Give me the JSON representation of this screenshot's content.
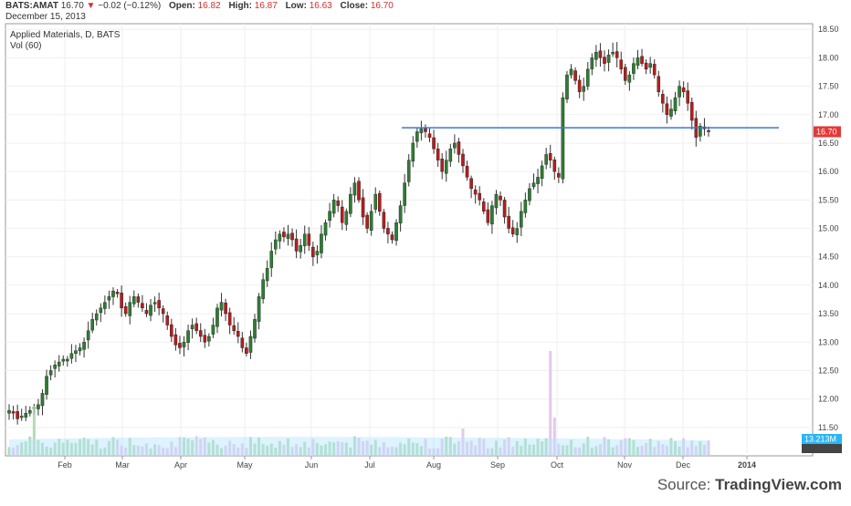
{
  "header": {
    "symbol": "BATS:AMAT",
    "price": "16.70",
    "change": "−0.02 (−0.12%)",
    "open_label": "Open:",
    "open": "16.82",
    "high_label": "High:",
    "high": "16.87",
    "low_label": "Low:",
    "low": "16.63",
    "close_label": "Close:",
    "close": "16.70",
    "date": "December 15, 2013"
  },
  "legend": {
    "title": "Applied Materials, D, BATS",
    "indicator": "Vol (60)"
  },
  "source": {
    "prefix": "Source: ",
    "brand": "TradingView.com"
  },
  "colors": {
    "up": "#2e7d32",
    "down": "#b71c1c",
    "line": "#3c78d8",
    "vol_up": "#a5d6a7",
    "vol_down": "#e1bee7",
    "ma": "#b3e5fc",
    "last_tag": "#e53935",
    "vol_tag": "#29b6f6"
  },
  "chart_data": {
    "type": "candlestick",
    "title": "Applied Materials, D, BATS",
    "x_tick_labels": [
      "Feb",
      "Mar",
      "Apr",
      "May",
      "Jun",
      "Jul",
      "Aug",
      "Sep",
      "Oct",
      "Nov",
      "Dec",
      "2014"
    ],
    "y_tick_labels": [
      "11.50",
      "12.00",
      "12.50",
      "13.00",
      "13.50",
      "14.00",
      "14.50",
      "15.00",
      "15.50",
      "16.00",
      "16.50",
      "17.00",
      "17.50",
      "18.00",
      "18.50"
    ],
    "ylim": [
      11.0,
      18.6
    ],
    "last_price_tag": "16.70",
    "volume_tag": "13.213M",
    "horizontal_line": 16.77,
    "close_series": [
      11.8,
      11.75,
      11.65,
      11.7,
      11.75,
      11.8,
      11.85,
      11.9,
      12.1,
      12.4,
      12.5,
      12.6,
      12.65,
      12.7,
      12.7,
      12.8,
      12.85,
      12.9,
      13.0,
      13.2,
      13.4,
      13.5,
      13.6,
      13.7,
      13.8,
      13.9,
      13.85,
      13.6,
      13.5,
      13.7,
      13.8,
      13.7,
      13.6,
      13.5,
      13.65,
      13.7,
      13.6,
      13.5,
      13.3,
      13.1,
      12.95,
      12.9,
      13.0,
      13.2,
      13.3,
      13.2,
      13.1,
      13.0,
      13.1,
      13.3,
      13.6,
      13.7,
      13.5,
      13.3,
      13.2,
      13.1,
      12.9,
      12.8,
      13.1,
      13.4,
      13.8,
      14.1,
      14.3,
      14.6,
      14.8,
      14.9,
      14.85,
      14.9,
      14.8,
      14.6,
      14.7,
      14.9,
      14.7,
      14.5,
      14.6,
      14.9,
      15.1,
      15.3,
      15.5,
      15.4,
      15.1,
      15.3,
      15.6,
      15.8,
      15.5,
      15.2,
      15.0,
      15.3,
      15.6,
      15.3,
      15.0,
      14.9,
      14.8,
      15.1,
      15.4,
      15.8,
      16.2,
      16.5,
      16.7,
      16.75,
      16.7,
      16.6,
      16.4,
      16.2,
      16.0,
      16.2,
      16.4,
      16.5,
      16.3,
      16.1,
      15.9,
      15.7,
      15.6,
      15.5,
      15.3,
      15.1,
      15.4,
      15.6,
      15.5,
      15.2,
      15.0,
      14.9,
      15.0,
      15.3,
      15.5,
      15.7,
      15.8,
      15.9,
      16.1,
      16.3,
      16.2,
      16.0,
      15.9,
      17.3,
      17.7,
      17.8,
      17.6,
      17.4,
      17.5,
      17.8,
      18.0,
      18.1,
      18.0,
      17.9,
      18.05,
      18.1,
      18.0,
      17.8,
      17.6,
      17.7,
      17.9,
      18.0,
      17.9,
      17.8,
      17.9,
      17.7,
      17.4,
      17.2,
      17.0,
      17.1,
      17.3,
      17.5,
      17.4,
      17.2,
      16.9,
      16.6,
      16.8,
      16.75,
      16.7
    ]
  }
}
